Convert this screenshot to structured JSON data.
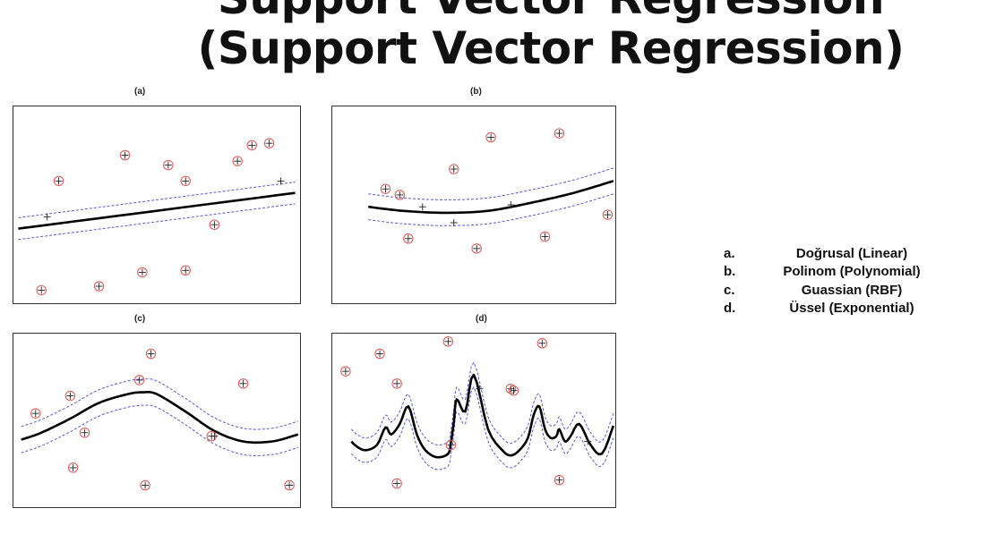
{
  "slide": {
    "title_lines": [
      "Support Vector Regression",
      "(Support Vector Regression)"
    ]
  },
  "legend": [
    {
      "marker": "a.",
      "text": "Doğrusal (Linear)"
    },
    {
      "marker": "b.",
      "text": "Polinom (Polynomial)"
    },
    {
      "marker": "c.",
      "text": "Guassian (RBF)"
    },
    {
      "marker": "d.",
      "text": "Üssel (Exponential)"
    }
  ],
  "colors": {
    "fit_line": "#000000",
    "margin_line": "#5a5ad2",
    "support_vector": "#e06060",
    "frame": "#333333"
  },
  "chart_data": [
    {
      "type": "scatter",
      "label": "(a)",
      "xlim": [
        0,
        1
      ],
      "ylim": [
        0,
        1
      ],
      "fit": "linear",
      "curve": {
        "x": [
          0.02,
          0.98
        ],
        "y": [
          0.38,
          0.56
        ]
      },
      "margin": 0.055,
      "points": [
        {
          "x": 0.16,
          "y": 0.62,
          "sv": true
        },
        {
          "x": 0.39,
          "y": 0.75,
          "sv": true
        },
        {
          "x": 0.54,
          "y": 0.7,
          "sv": true
        },
        {
          "x": 0.6,
          "y": 0.62,
          "sv": true
        },
        {
          "x": 0.78,
          "y": 0.72,
          "sv": true
        },
        {
          "x": 0.83,
          "y": 0.8,
          "sv": true
        },
        {
          "x": 0.89,
          "y": 0.81,
          "sv": true
        },
        {
          "x": 0.1,
          "y": 0.07,
          "sv": true
        },
        {
          "x": 0.3,
          "y": 0.09,
          "sv": true
        },
        {
          "x": 0.45,
          "y": 0.16,
          "sv": true
        },
        {
          "x": 0.6,
          "y": 0.17,
          "sv": true
        },
        {
          "x": 0.7,
          "y": 0.4,
          "sv": true
        },
        {
          "x": 0.12,
          "y": 0.44,
          "sv": false
        },
        {
          "x": 0.93,
          "y": 0.62,
          "sv": false
        }
      ]
    },
    {
      "type": "scatter",
      "label": "(b)",
      "xlim": [
        0,
        1
      ],
      "ylim": [
        0,
        1
      ],
      "fit": "polynomial",
      "curve": {
        "x": [
          0.13,
          0.25,
          0.4,
          0.55,
          0.7,
          0.85,
          0.99
        ],
        "y": [
          0.49,
          0.47,
          0.46,
          0.47,
          0.51,
          0.56,
          0.62
        ]
      },
      "margin": 0.065,
      "points": [
        {
          "x": 0.19,
          "y": 0.58,
          "sv": true
        },
        {
          "x": 0.24,
          "y": 0.55,
          "sv": true
        },
        {
          "x": 0.43,
          "y": 0.68,
          "sv": true
        },
        {
          "x": 0.56,
          "y": 0.84,
          "sv": true
        },
        {
          "x": 0.8,
          "y": 0.86,
          "sv": true
        },
        {
          "x": 0.97,
          "y": 0.45,
          "sv": true
        },
        {
          "x": 0.27,
          "y": 0.33,
          "sv": true
        },
        {
          "x": 0.51,
          "y": 0.28,
          "sv": true
        },
        {
          "x": 0.75,
          "y": 0.34,
          "sv": true
        },
        {
          "x": 0.32,
          "y": 0.49,
          "sv": false
        },
        {
          "x": 0.43,
          "y": 0.41,
          "sv": false
        },
        {
          "x": 0.63,
          "y": 0.5,
          "sv": false
        }
      ]
    },
    {
      "type": "scatter",
      "label": "(c)",
      "xlim": [
        0,
        1
      ],
      "ylim": [
        0,
        1
      ],
      "fit": "rbf",
      "curve": {
        "x": [
          0.03,
          0.1,
          0.2,
          0.3,
          0.4,
          0.45,
          0.5,
          0.6,
          0.7,
          0.8,
          0.9,
          0.99
        ],
        "y": [
          0.39,
          0.43,
          0.51,
          0.6,
          0.65,
          0.66,
          0.65,
          0.55,
          0.44,
          0.38,
          0.38,
          0.42
        ]
      },
      "margin": 0.075,
      "points": [
        {
          "x": 0.48,
          "y": 0.88,
          "sv": true
        },
        {
          "x": 0.44,
          "y": 0.73,
          "sv": true
        },
        {
          "x": 0.8,
          "y": 0.71,
          "sv": true
        },
        {
          "x": 0.08,
          "y": 0.54,
          "sv": true
        },
        {
          "x": 0.2,
          "y": 0.64,
          "sv": true
        },
        {
          "x": 0.25,
          "y": 0.43,
          "sv": true
        },
        {
          "x": 0.69,
          "y": 0.41,
          "sv": true
        },
        {
          "x": 0.21,
          "y": 0.23,
          "sv": true
        },
        {
          "x": 0.46,
          "y": 0.13,
          "sv": true
        },
        {
          "x": 0.96,
          "y": 0.13,
          "sv": true
        },
        {
          "x": 0.7,
          "y": 0.41,
          "sv": false
        }
      ]
    },
    {
      "type": "scatter",
      "label": "(d)",
      "xlim": [
        0,
        1
      ],
      "ylim": [
        0,
        1
      ],
      "fit": "exponential",
      "curve": {
        "x": [
          0.07,
          0.09,
          0.12,
          0.16,
          0.19,
          0.21,
          0.24,
          0.27,
          0.3,
          0.33,
          0.37,
          0.41,
          0.42,
          0.43,
          0.44,
          0.47,
          0.5,
          0.55,
          0.6,
          0.63,
          0.66,
          0.69,
          0.71,
          0.73,
          0.75,
          0.77,
          0.79,
          0.8,
          0.82,
          0.84,
          0.87,
          0.91,
          0.95,
          0.99
        ],
        "y": [
          0.38,
          0.35,
          0.33,
          0.36,
          0.46,
          0.42,
          0.48,
          0.58,
          0.42,
          0.33,
          0.29,
          0.31,
          0.38,
          0.49,
          0.62,
          0.55,
          0.76,
          0.45,
          0.33,
          0.3,
          0.33,
          0.4,
          0.53,
          0.58,
          0.45,
          0.4,
          0.41,
          0.45,
          0.38,
          0.41,
          0.48,
          0.36,
          0.31,
          0.47
        ]
      },
      "margin": 0.07,
      "points": [
        {
          "x": 0.05,
          "y": 0.78,
          "sv": true
        },
        {
          "x": 0.17,
          "y": 0.88,
          "sv": true
        },
        {
          "x": 0.41,
          "y": 0.95,
          "sv": true
        },
        {
          "x": 0.74,
          "y": 0.94,
          "sv": true
        },
        {
          "x": 0.23,
          "y": 0.71,
          "sv": true
        },
        {
          "x": 0.63,
          "y": 0.68,
          "sv": true
        },
        {
          "x": 0.64,
          "y": 0.67,
          "sv": true
        },
        {
          "x": 0.42,
          "y": 0.36,
          "sv": true
        },
        {
          "x": 0.23,
          "y": 0.14,
          "sv": true
        },
        {
          "x": 0.8,
          "y": 0.16,
          "sv": true
        },
        {
          "x": 0.52,
          "y": 0.68,
          "sv": false
        },
        {
          "x": 0.9,
          "y": 0.38,
          "sv": false
        }
      ]
    }
  ]
}
